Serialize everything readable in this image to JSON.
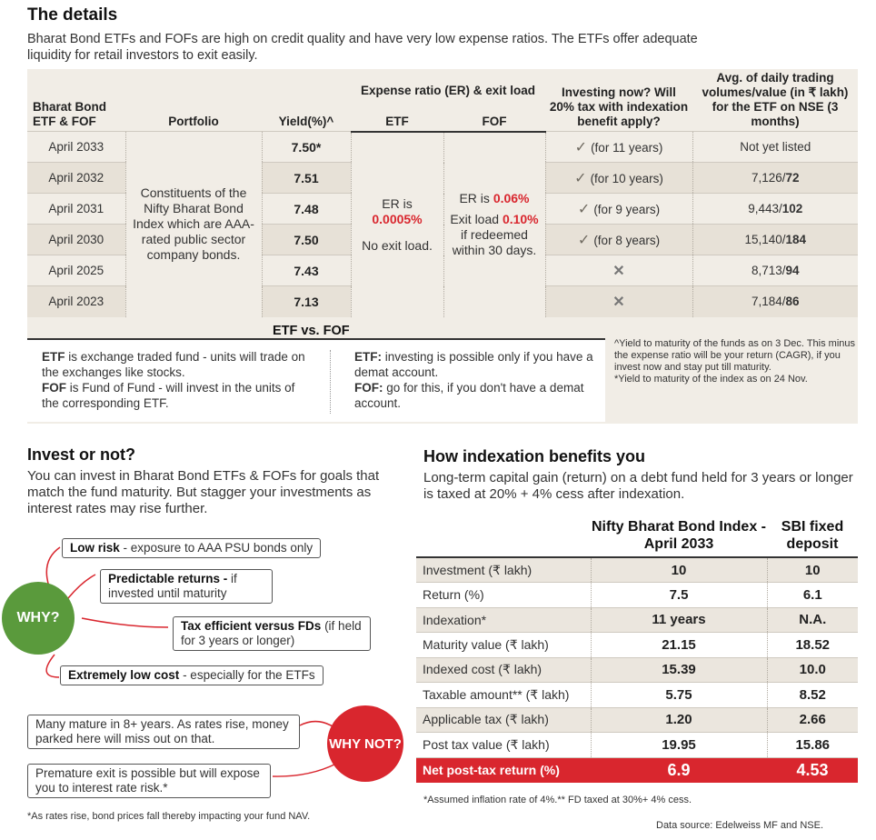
{
  "title": "The details",
  "intro": "Bharat Bond ETFs and FOFs are high on credit quality and have very low expense ratios. The ETFs offer adequate liquidity for retail investors to exit easily.",
  "colors": {
    "accent_red": "#d9262e",
    "why_green": "#5a9a3c",
    "panel_bg": "#f1ede6"
  },
  "funds_table": {
    "headers": {
      "name": "Bharat Bond ETF & FOF",
      "portfolio": "Portfolio",
      "yield": "Yield(%)^",
      "expense_group": "Expense ratio (ER) & exit load",
      "etf": "ETF",
      "fof": "FOF",
      "investing": "Investing now? Will 20% tax with indexation benefit apply?",
      "volumes": "Avg. of daily trading volumes/value (in ₹ lakh) for the ETF on NSE (3 months)"
    },
    "portfolio_text": "Constituents of the Nifty Bharat Bond Index which are AAA-rated public sector company bonds.",
    "etf_er_label": "ER is",
    "etf_er_value": "0.0005%",
    "etf_exit": "No exit load.",
    "fof_er_label": "ER is",
    "fof_er_value": "0.06%",
    "fof_exit_a": "Exit load",
    "fof_exit_value": "0.10%",
    "fof_exit_b": "if redeemed within 30 days.",
    "tick_icon": "check-icon",
    "cross_icon": "cross-icon",
    "rows": [
      {
        "name": "April 2033",
        "yield": "7.50*",
        "investing": "(for 11 years)",
        "tick": true,
        "vol_a": "Not yet listed",
        "vol_b": ""
      },
      {
        "name": "April 2032",
        "yield": "7.51",
        "investing": "(for 10 years)",
        "tick": true,
        "vol_a": "7,126/",
        "vol_b": "72"
      },
      {
        "name": "April 2031",
        "yield": "7.48",
        "investing": "(for 9 years)",
        "tick": true,
        "vol_a": "9,443/",
        "vol_b": "102"
      },
      {
        "name": "April 2030",
        "yield": "7.50",
        "investing": "(for 8 years)",
        "tick": true,
        "vol_a": "15,140/",
        "vol_b": "184"
      },
      {
        "name": "April 2025",
        "yield": "7.43",
        "investing": "",
        "tick": false,
        "vol_a": "8,713/",
        "vol_b": "94"
      },
      {
        "name": "April 2023",
        "yield": "7.13",
        "investing": "",
        "tick": false,
        "vol_a": "7,184/",
        "vol_b": "86"
      }
    ]
  },
  "etf_vs_fof": {
    "heading": "ETF vs. FOF",
    "def_etf_term": "ETF",
    "def_etf": " is exchange traded fund - units will trade on the exchanges like stocks.",
    "def_fof_term": "FOF",
    "def_fof": " is Fund of Fund - will invest in the units of the corresponding ETF.",
    "use_etf_term": "ETF:",
    "use_etf": " investing is possible only if you have a demat account.",
    "use_fof_term": "FOF:",
    "use_fof": " go for this, if you don't have a demat account."
  },
  "footnotes": {
    "yield_note": "^Yield to maturity of the funds as on 3 Dec. This minus the expense ratio will be your return (CAGR), if you invest now and stay put till maturity.",
    "index_note": "*Yield to maturity of the index as on 24 Nov."
  },
  "invest": {
    "heading": "Invest or not?",
    "text": "You can invest in Bharat Bond ETFs & FOFs for goals that match the fund maturity. But stagger your investments as interest rates may rise further.",
    "why_label": "WHY?",
    "why_not_label": "WHY NOT?",
    "why_items": [
      {
        "bold": "Low risk",
        "rest": " - exposure to AAA PSU bonds only"
      },
      {
        "bold": "Predictable returns -",
        "rest": " if invested until maturity"
      },
      {
        "bold": "Tax efficient versus FDs",
        "rest": " (if held for 3 years or longer)"
      },
      {
        "bold": "Extremely low cost",
        "rest": " - especially for the ETFs"
      }
    ],
    "why_not_items": [
      "Many mature in 8+ years. As rates rise, money parked here will miss out on that.",
      "Premature exit is possible but will expose you to interest rate risk.*"
    ],
    "footnote": "*As rates rise, bond prices fall thereby impacting your fund NAV."
  },
  "indexation": {
    "heading": "How indexation benefits you",
    "text": "Long-term capital gain (return) on a debt fund held for 3 years or longer is taxed at 20% + 4% cess after indexation.",
    "col1": "Nifty Bharat Bond Index - April 2033",
    "col2": "SBI fixed deposit",
    "rows": [
      {
        "label": "Investment (₹ lakh)",
        "a": "10",
        "b": "10"
      },
      {
        "label": "Return (%)",
        "a": "7.5",
        "b": "6.1"
      },
      {
        "label": "Indexation*",
        "a": "11 years",
        "b": "N.A."
      },
      {
        "label": "Maturity value (₹ lakh)",
        "a": "21.15",
        "b": "18.52"
      },
      {
        "label": "Indexed cost (₹ lakh)",
        "a": "15.39",
        "b": "10.0"
      },
      {
        "label": "Taxable amount** (₹ lakh)",
        "a": "5.75",
        "b": "8.52"
      },
      {
        "label": "Applicable tax (₹ lakh)",
        "a": "1.20",
        "b": "2.66"
      },
      {
        "label": "Post tax value (₹ lakh)",
        "a": "19.95",
        "b": "15.86"
      }
    ],
    "net": {
      "label": "Net post-tax return (%)",
      "a": "6.9",
      "b": "4.53"
    },
    "footnote": "*Assumed inflation rate of 4%.** FD taxed at 30%+ 4% cess.",
    "source": "Data source: Edelweiss MF and NSE."
  }
}
